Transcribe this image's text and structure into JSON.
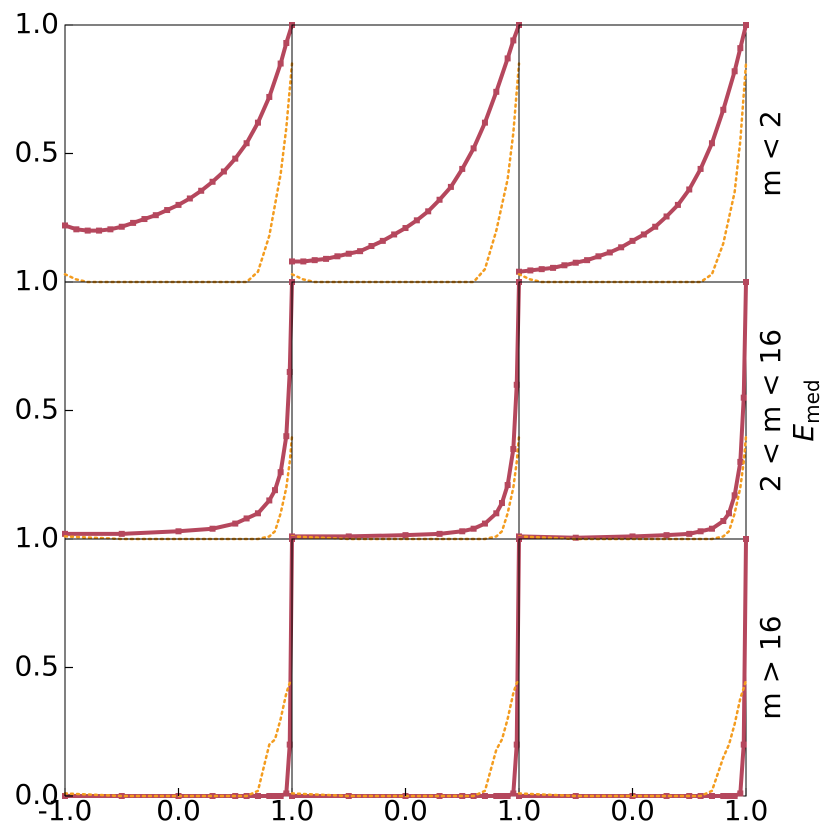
{
  "chart_data": [
    {
      "type": "line",
      "xlim": [
        -1,
        1
      ],
      "ylim": [
        0,
        1
      ],
      "yticks": [
        0.5,
        {
          "value": 1,
          "label": "1.0"
        }
      ],
      "x": [
        -1,
        -0.9,
        -0.8,
        -0.7,
        -0.6,
        -0.5,
        -0.4,
        -0.3,
        -0.2,
        -0.1,
        0,
        0.1,
        0.2,
        0.3,
        0.4,
        0.5,
        0.6,
        0.7,
        0.8,
        0.9,
        0.95,
        1
      ],
      "series": [
        {
          "color": "#b5475d",
          "style": "solid",
          "marker": "square",
          "values": [
            0.22,
            0.205,
            0.2,
            0.2,
            0.205,
            0.215,
            0.23,
            0.245,
            0.26,
            0.28,
            0.3,
            0.325,
            0.355,
            0.39,
            0.43,
            0.48,
            0.54,
            0.62,
            0.72,
            0.85,
            0.93,
            1
          ]
        },
        {
          "color": "#f39c1f",
          "style": "dotted",
          "values": [
            0.03,
            0.01,
            0,
            0,
            0,
            0,
            0,
            0,
            0,
            0,
            0,
            0,
            0,
            0,
            0,
            0,
            0,
            0.04,
            0.18,
            0.42,
            0.6,
            0.85
          ]
        }
      ]
    },
    {
      "type": "line",
      "xlim": [
        -1,
        1
      ],
      "ylim": [
        0,
        1
      ],
      "x": [
        -1,
        -0.9,
        -0.8,
        -0.7,
        -0.6,
        -0.5,
        -0.4,
        -0.3,
        -0.2,
        -0.1,
        0,
        0.1,
        0.2,
        0.3,
        0.4,
        0.5,
        0.6,
        0.7,
        0.8,
        0.9,
        0.95,
        1
      ],
      "series": [
        {
          "color": "#b5475d",
          "style": "solid",
          "marker": "square",
          "values": [
            0.08,
            0.08,
            0.085,
            0.09,
            0.1,
            0.11,
            0.12,
            0.14,
            0.16,
            0.185,
            0.21,
            0.24,
            0.275,
            0.32,
            0.37,
            0.44,
            0.52,
            0.62,
            0.74,
            0.87,
            0.94,
            1
          ]
        },
        {
          "color": "#f39c1f",
          "style": "dotted",
          "values": [
            0.03,
            0.01,
            0,
            0,
            0,
            0,
            0,
            0,
            0,
            0,
            0,
            0,
            0,
            0,
            0,
            0,
            0,
            0.05,
            0.2,
            0.4,
            0.58,
            0.85
          ]
        }
      ]
    },
    {
      "type": "line",
      "xlim": [
        -1,
        1
      ],
      "ylim": [
        0,
        1
      ],
      "row_label": "m < 2",
      "x": [
        -1,
        -0.9,
        -0.8,
        -0.7,
        -0.6,
        -0.5,
        -0.4,
        -0.3,
        -0.2,
        -0.1,
        0,
        0.1,
        0.2,
        0.3,
        0.4,
        0.5,
        0.6,
        0.7,
        0.8,
        0.9,
        0.95,
        1
      ],
      "series": [
        {
          "color": "#b5475d",
          "style": "solid",
          "marker": "square",
          "values": [
            0.04,
            0.045,
            0.05,
            0.055,
            0.065,
            0.075,
            0.085,
            0.1,
            0.115,
            0.135,
            0.16,
            0.185,
            0.215,
            0.255,
            0.3,
            0.36,
            0.44,
            0.54,
            0.67,
            0.82,
            0.91,
            1
          ]
        },
        {
          "color": "#f39c1f",
          "style": "dotted",
          "values": [
            0.03,
            0.01,
            0,
            0,
            0,
            0,
            0,
            0,
            0,
            0,
            0,
            0,
            0,
            0,
            0,
            0,
            0,
            0.03,
            0.15,
            0.35,
            0.55,
            0.85
          ]
        }
      ]
    },
    {
      "type": "line",
      "xlim": [
        -1,
        1
      ],
      "ylim": [
        0,
        1
      ],
      "yticks": [
        0.5,
        {
          "value": 1,
          "label": "1.0"
        }
      ],
      "x": [
        -1,
        -0.5,
        0,
        0.3,
        0.5,
        0.6,
        0.7,
        0.8,
        0.85,
        0.9,
        0.95,
        0.98,
        1
      ],
      "series": [
        {
          "color": "#b5475d",
          "style": "solid",
          "marker": "square",
          "values": [
            0.02,
            0.02,
            0.03,
            0.04,
            0.06,
            0.08,
            0.1,
            0.15,
            0.19,
            0.26,
            0.4,
            0.65,
            1
          ]
        },
        {
          "color": "#f39c1f",
          "style": "dotted",
          "values": [
            0.01,
            0,
            0,
            0,
            0,
            0,
            0,
            0.01,
            0.03,
            0.1,
            0.2,
            0.3,
            0.4
          ]
        }
      ]
    },
    {
      "type": "line",
      "xlim": [
        -1,
        1
      ],
      "ylim": [
        0,
        1
      ],
      "x": [
        -1,
        -0.5,
        0,
        0.3,
        0.5,
        0.6,
        0.7,
        0.8,
        0.85,
        0.9,
        0.95,
        0.98,
        1
      ],
      "series": [
        {
          "color": "#b5475d",
          "style": "solid",
          "marker": "square",
          "values": [
            0.01,
            0.01,
            0.015,
            0.02,
            0.03,
            0.04,
            0.06,
            0.1,
            0.14,
            0.21,
            0.35,
            0.6,
            1
          ]
        },
        {
          "color": "#f39c1f",
          "style": "dotted",
          "values": [
            0.01,
            0,
            0,
            0,
            0,
            0,
            0,
            0.01,
            0.03,
            0.1,
            0.2,
            0.3,
            0.4
          ]
        }
      ]
    },
    {
      "type": "line",
      "xlim": [
        -1,
        1
      ],
      "ylim": [
        0,
        1
      ],
      "row_label": "2 < m < 16",
      "ylabel": {
        "symbol": "E",
        "subscript": "med"
      },
      "x": [
        -1,
        -0.5,
        0,
        0.3,
        0.5,
        0.6,
        0.7,
        0.8,
        0.85,
        0.9,
        0.95,
        0.98,
        1
      ],
      "series": [
        {
          "color": "#b5475d",
          "style": "solid",
          "marker": "square",
          "values": [
            0.01,
            0.005,
            0.01,
            0.015,
            0.02,
            0.03,
            0.04,
            0.07,
            0.1,
            0.17,
            0.3,
            0.55,
            1
          ]
        },
        {
          "color": "#f39c1f",
          "style": "dotted",
          "values": [
            0.01,
            0,
            0,
            0,
            0,
            0,
            0,
            0.01,
            0.03,
            0.1,
            0.2,
            0.3,
            0.4
          ]
        }
      ]
    },
    {
      "type": "line",
      "xlim": [
        -1,
        1
      ],
      "ylim": [
        0,
        1
      ],
      "yticks": [
        {
          "value": 0,
          "label": "0.0"
        },
        0.5,
        {
          "value": 1,
          "label": "1.0"
        }
      ],
      "xticks": [
        {
          "value": -1,
          "label": "-1.0"
        },
        {
          "value": 0,
          "label": "0.0"
        },
        {
          "value": 1,
          "label": "1.0"
        }
      ],
      "x": [
        -1,
        -0.5,
        0,
        0.3,
        0.5,
        0.6,
        0.7,
        0.8,
        0.85,
        0.9,
        0.95,
        0.98,
        1
      ],
      "series": [
        {
          "color": "#b5475d",
          "style": "solid",
          "marker": "square",
          "values": [
            0,
            0,
            0,
            0,
            0,
            0,
            0,
            0,
            0,
            0,
            0.01,
            0.2,
            1
          ]
        },
        {
          "color": "#f39c1f",
          "style": "dotted",
          "values": [
            0.01,
            0,
            0,
            0,
            0,
            0,
            0.02,
            0.2,
            0.22,
            0.3,
            0.4,
            0.44,
            0.45
          ]
        }
      ]
    },
    {
      "type": "line",
      "xlim": [
        -1,
        1
      ],
      "ylim": [
        0,
        1
      ],
      "xticks": [
        {
          "value": 0,
          "label": "0.0"
        },
        {
          "value": 1,
          "label": "1.0"
        }
      ],
      "x": [
        -1,
        -0.5,
        0,
        0.3,
        0.5,
        0.6,
        0.7,
        0.8,
        0.85,
        0.9,
        0.95,
        0.98,
        1
      ],
      "series": [
        {
          "color": "#b5475d",
          "style": "solid",
          "marker": "square",
          "values": [
            0,
            0,
            0,
            0,
            0,
            0,
            0,
            0,
            0,
            0,
            0.01,
            0.2,
            1
          ]
        },
        {
          "color": "#f39c1f",
          "style": "dotted",
          "values": [
            0.01,
            0,
            0,
            0,
            0,
            0,
            0.02,
            0.18,
            0.22,
            0.3,
            0.4,
            0.44,
            0.45
          ]
        }
      ]
    },
    {
      "type": "line",
      "xlim": [
        -1,
        1
      ],
      "ylim": [
        0,
        1
      ],
      "row_label": "m > 16",
      "xticks": [
        {
          "value": 0,
          "label": "0.0"
        },
        {
          "value": 1,
          "label": "1.0"
        }
      ],
      "x": [
        -1,
        -0.5,
        0,
        0.3,
        0.5,
        0.6,
        0.7,
        0.8,
        0.85,
        0.9,
        0.95,
        0.98,
        1
      ],
      "series": [
        {
          "color": "#b5475d",
          "style": "solid",
          "marker": "square",
          "values": [
            0,
            0,
            0,
            0,
            0,
            0,
            0,
            0,
            0,
            0,
            0.01,
            0.2,
            1
          ]
        },
        {
          "color": "#f39c1f",
          "style": "dotted",
          "values": [
            0.01,
            0,
            0,
            0,
            0,
            0,
            0.02,
            0.15,
            0.2,
            0.28,
            0.38,
            0.42,
            0.45
          ]
        }
      ]
    }
  ]
}
